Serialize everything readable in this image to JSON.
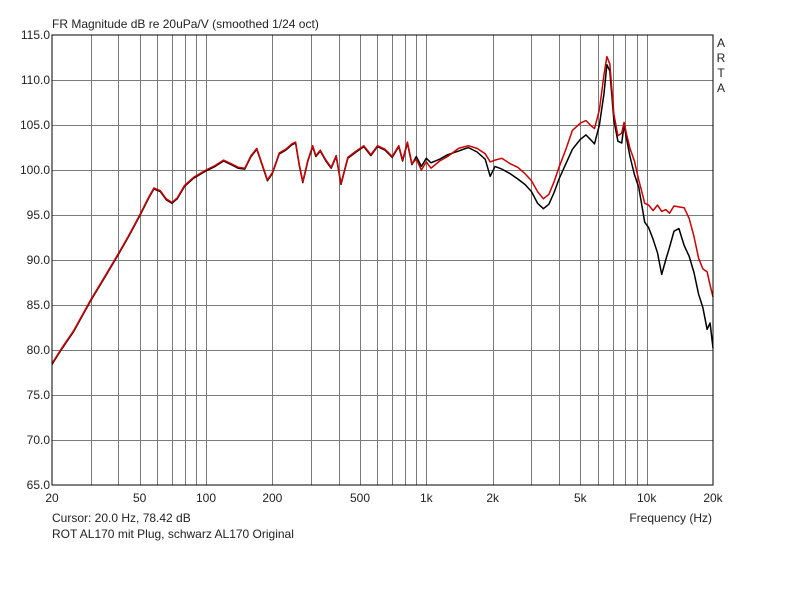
{
  "chart_data": {
    "type": "line",
    "title": "FR Magnitude dB re 20uPa/V (smoothed 1/24 oct)",
    "xlabel": "Frequency (Hz)",
    "ylabel": "",
    "xscale": "log",
    "xlim": [
      20,
      20000
    ],
    "ylim": [
      65,
      115
    ],
    "grid": true,
    "x_ticks": [
      20,
      50,
      100,
      200,
      500,
      1000,
      2000,
      5000,
      10000,
      20000
    ],
    "x_tick_labels": [
      "20",
      "50",
      "100",
      "200",
      "500",
      "1k",
      "2k",
      "5k",
      "10k",
      "20k"
    ],
    "y_ticks": [
      65,
      70,
      75,
      80,
      85,
      90,
      95,
      100,
      105,
      110,
      115
    ],
    "y_tick_labels": [
      "65.0",
      "70.0",
      "75.0",
      "80.0",
      "85.0",
      "90.0",
      "95.0",
      "100.0",
      "105.0",
      "110.0",
      "115.0"
    ],
    "series": [
      {
        "color": "#000000",
        "points": [
          [
            20,
            78.4
          ],
          [
            22,
            80
          ],
          [
            25,
            82
          ],
          [
            30,
            85.5
          ],
          [
            35,
            88.2
          ],
          [
            40,
            90.6
          ],
          [
            45,
            92.8
          ],
          [
            50,
            94.9
          ],
          [
            55,
            96.9
          ],
          [
            58,
            97.9
          ],
          [
            62,
            97.6
          ],
          [
            66,
            96.7
          ],
          [
            70,
            96.3
          ],
          [
            74,
            96.8
          ],
          [
            80,
            98.2
          ],
          [
            88,
            99.1
          ],
          [
            100,
            99.9
          ],
          [
            110,
            100.4
          ],
          [
            120,
            101.0
          ],
          [
            130,
            100.6
          ],
          [
            140,
            100.2
          ],
          [
            150,
            100.1
          ],
          [
            160,
            101.5
          ],
          [
            170,
            102.3
          ],
          [
            180,
            100.5
          ],
          [
            190,
            98.8
          ],
          [
            200,
            99.6
          ],
          [
            215,
            101.8
          ],
          [
            230,
            102.2
          ],
          [
            245,
            102.8
          ],
          [
            255,
            103.0
          ],
          [
            265,
            100.5
          ],
          [
            275,
            98.6
          ],
          [
            290,
            101.0
          ],
          [
            305,
            102.6
          ],
          [
            315,
            101.5
          ],
          [
            330,
            102.1
          ],
          [
            350,
            101.0
          ],
          [
            370,
            100.2
          ],
          [
            390,
            101.5
          ],
          [
            410,
            98.4
          ],
          [
            440,
            101.3
          ],
          [
            480,
            102.0
          ],
          [
            520,
            102.6
          ],
          [
            560,
            101.6
          ],
          [
            600,
            102.6
          ],
          [
            650,
            102.2
          ],
          [
            700,
            101.4
          ],
          [
            750,
            102.6
          ],
          [
            780,
            101.0
          ],
          [
            820,
            103.0
          ],
          [
            860,
            100.6
          ],
          [
            900,
            101.5
          ],
          [
            950,
            100.4
          ],
          [
            1000,
            101.3
          ],
          [
            1050,
            100.8
          ],
          [
            1150,
            101.2
          ],
          [
            1250,
            101.7
          ],
          [
            1400,
            102.1
          ],
          [
            1550,
            102.5
          ],
          [
            1700,
            102.0
          ],
          [
            1850,
            101.2
          ],
          [
            1950,
            99.3
          ],
          [
            2050,
            100.4
          ],
          [
            2200,
            100.1
          ],
          [
            2400,
            99.6
          ],
          [
            2600,
            99.0
          ],
          [
            2800,
            98.4
          ],
          [
            3000,
            97.6
          ],
          [
            3200,
            96.3
          ],
          [
            3400,
            95.7
          ],
          [
            3600,
            96.2
          ],
          [
            3800,
            97.5
          ],
          [
            4000,
            99.0
          ],
          [
            4300,
            100.7
          ],
          [
            4600,
            102.3
          ],
          [
            5000,
            103.4
          ],
          [
            5300,
            103.9
          ],
          [
            5600,
            103.3
          ],
          [
            5800,
            102.9
          ],
          [
            6100,
            105.0
          ],
          [
            6400,
            108.5
          ],
          [
            6600,
            111.7
          ],
          [
            6800,
            111.0
          ],
          [
            7100,
            105.5
          ],
          [
            7400,
            103.2
          ],
          [
            7700,
            103.0
          ],
          [
            7900,
            105.0
          ],
          [
            8100,
            103.5
          ],
          [
            8400,
            101.5
          ],
          [
            8800,
            99.5
          ],
          [
            9200,
            98.1
          ],
          [
            9500,
            96.1
          ],
          [
            9800,
            94.2
          ],
          [
            10200,
            93.6
          ],
          [
            10700,
            92.3
          ],
          [
            11200,
            90.8
          ],
          [
            11700,
            88.4
          ],
          [
            12200,
            90.0
          ],
          [
            12700,
            91.4
          ],
          [
            13300,
            93.2
          ],
          [
            14000,
            93.5
          ],
          [
            14800,
            91.6
          ],
          [
            15600,
            90.4
          ],
          [
            16400,
            88.6
          ],
          [
            17200,
            86.2
          ],
          [
            18000,
            84.7
          ],
          [
            18800,
            82.3
          ],
          [
            19400,
            83.0
          ],
          [
            20000,
            80.2
          ]
        ]
      },
      {
        "color": "#cc0000",
        "points": [
          [
            20,
            78.5
          ],
          [
            22,
            80.1
          ],
          [
            25,
            82.1
          ],
          [
            30,
            85.6
          ],
          [
            35,
            88.3
          ],
          [
            40,
            90.7
          ],
          [
            45,
            92.9
          ],
          [
            50,
            95.0
          ],
          [
            55,
            97.0
          ],
          [
            58,
            98.0
          ],
          [
            62,
            97.7
          ],
          [
            66,
            96.8
          ],
          [
            70,
            96.4
          ],
          [
            74,
            96.9
          ],
          [
            80,
            98.3
          ],
          [
            88,
            99.2
          ],
          [
            100,
            100.0
          ],
          [
            110,
            100.5
          ],
          [
            120,
            101.1
          ],
          [
            130,
            100.7
          ],
          [
            140,
            100.3
          ],
          [
            150,
            100.2
          ],
          [
            160,
            101.6
          ],
          [
            170,
            102.4
          ],
          [
            180,
            100.6
          ],
          [
            190,
            98.9
          ],
          [
            200,
            99.7
          ],
          [
            215,
            101.9
          ],
          [
            230,
            102.3
          ],
          [
            245,
            102.9
          ],
          [
            255,
            103.1
          ],
          [
            265,
            100.6
          ],
          [
            275,
            98.7
          ],
          [
            290,
            101.1
          ],
          [
            305,
            102.7
          ],
          [
            315,
            101.6
          ],
          [
            330,
            102.2
          ],
          [
            350,
            101.1
          ],
          [
            370,
            100.3
          ],
          [
            390,
            101.6
          ],
          [
            410,
            98.5
          ],
          [
            440,
            101.4
          ],
          [
            480,
            102.1
          ],
          [
            520,
            102.7
          ],
          [
            560,
            101.7
          ],
          [
            600,
            102.7
          ],
          [
            650,
            102.3
          ],
          [
            700,
            101.5
          ],
          [
            750,
            102.7
          ],
          [
            780,
            101.1
          ],
          [
            820,
            103.1
          ],
          [
            860,
            100.7
          ],
          [
            900,
            101.2
          ],
          [
            950,
            100.0
          ],
          [
            1000,
            100.9
          ],
          [
            1050,
            100.2
          ],
          [
            1150,
            101.0
          ],
          [
            1250,
            101.5
          ],
          [
            1400,
            102.4
          ],
          [
            1550,
            102.7
          ],
          [
            1700,
            102.4
          ],
          [
            1850,
            101.8
          ],
          [
            1950,
            100.9
          ],
          [
            2050,
            101.1
          ],
          [
            2200,
            101.3
          ],
          [
            2400,
            100.7
          ],
          [
            2600,
            100.3
          ],
          [
            2800,
            99.6
          ],
          [
            3000,
            98.8
          ],
          [
            3200,
            97.6
          ],
          [
            3400,
            96.8
          ],
          [
            3600,
            97.3
          ],
          [
            3800,
            98.7
          ],
          [
            4000,
            100.3
          ],
          [
            4300,
            102.3
          ],
          [
            4600,
            104.4
          ],
          [
            5000,
            105.2
          ],
          [
            5300,
            105.5
          ],
          [
            5600,
            104.9
          ],
          [
            5800,
            104.6
          ],
          [
            6100,
            106.7
          ],
          [
            6400,
            110.6
          ],
          [
            6600,
            112.6
          ],
          [
            6800,
            111.8
          ],
          [
            7100,
            106.2
          ],
          [
            7400,
            103.8
          ],
          [
            7700,
            104.1
          ],
          [
            7900,
            105.3
          ],
          [
            8100,
            104.0
          ],
          [
            8400,
            102.4
          ],
          [
            8800,
            101.0
          ],
          [
            9200,
            98.9
          ],
          [
            9500,
            97.6
          ],
          [
            9800,
            96.3
          ],
          [
            10200,
            96.1
          ],
          [
            10700,
            95.5
          ],
          [
            11200,
            96.1
          ],
          [
            11700,
            95.4
          ],
          [
            12200,
            95.6
          ],
          [
            12700,
            95.2
          ],
          [
            13300,
            96.0
          ],
          [
            14000,
            95.9
          ],
          [
            14800,
            95.8
          ],
          [
            15600,
            94.6
          ],
          [
            16400,
            92.6
          ],
          [
            17200,
            90.2
          ],
          [
            18000,
            89.0
          ],
          [
            18800,
            88.7
          ],
          [
            19400,
            87.2
          ],
          [
            20000,
            85.9
          ]
        ]
      }
    ]
  },
  "header": {
    "title": "FR Magnitude dB re 20uPa/V (smoothed 1/24 oct)"
  },
  "footer": {
    "cursor": "Cursor: 20.0 Hz, 78.42 dB",
    "caption": "ROT AL170 mit Plug, schwarz AL170 Original",
    "xlabel": "Frequency (Hz)"
  },
  "watermark": {
    "letters": [
      "A",
      "R",
      "T",
      "A"
    ]
  }
}
